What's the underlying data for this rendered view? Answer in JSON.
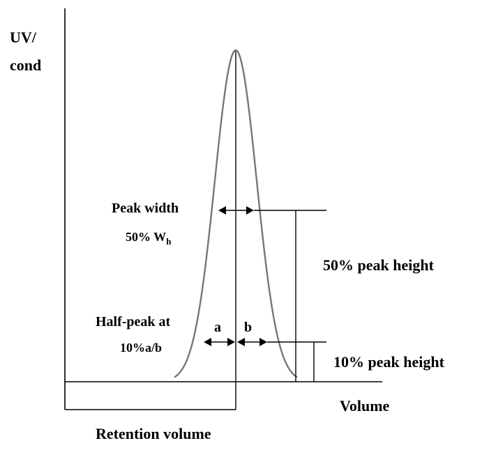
{
  "diagram": {
    "y_axis_label_line1": "UV/",
    "y_axis_label_line2": "cond",
    "x_axis_label": "Volume",
    "retention_label": "Retention volume",
    "peak_width_label": "Peak width",
    "wh_prefix": "50% W",
    "wh_subscript": "h",
    "half_peak_label": "Half-peak at",
    "half_peak_sub": "10%a/b",
    "label_a": "a",
    "label_b": "b",
    "fifty_height_label": "50% peak height",
    "ten_height_label": "10% peak height"
  },
  "colors": {
    "ink": "#000000",
    "curve": "#777777"
  }
}
